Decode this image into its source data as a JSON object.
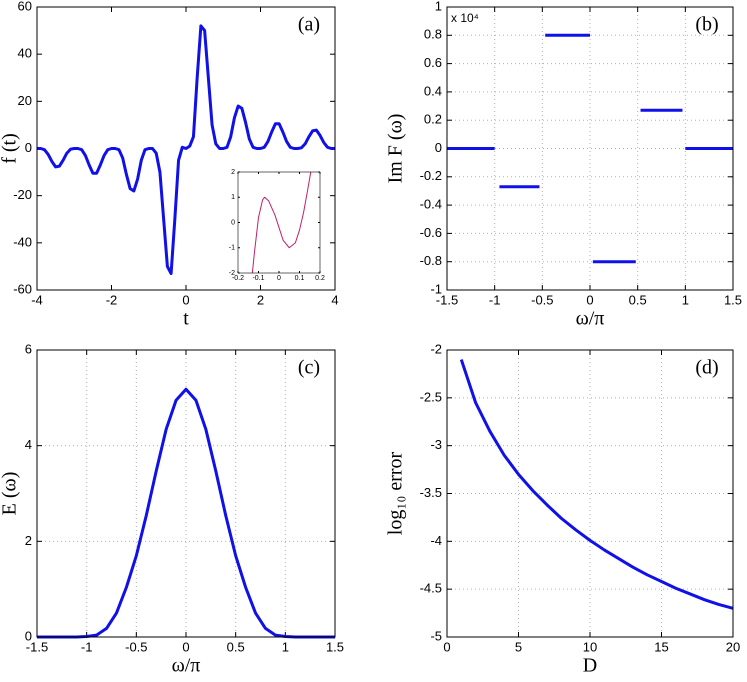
{
  "chart_data": [
    {
      "type": "line",
      "panel_label": "(a)",
      "xlabel": "t",
      "ylabel": "f (t)",
      "color": "#1010e8",
      "grid": false,
      "xlim": [
        -4,
        4
      ],
      "xticks": [
        -4,
        -2,
        0,
        2,
        4
      ],
      "ylim": [
        -60,
        60
      ],
      "yticks": [
        -60,
        -40,
        -20,
        0,
        20,
        40,
        60
      ],
      "x": [
        -4,
        -3.9,
        -3.8,
        -3.7,
        -3.6,
        -3.5,
        -3.4,
        -3.3,
        -3.2,
        -3.1,
        -3,
        -2.9,
        -2.8,
        -2.7,
        -2.6,
        -2.5,
        -2.4,
        -2.3,
        -2.2,
        -2.1,
        -2,
        -1.9,
        -1.8,
        -1.7,
        -1.6,
        -1.5,
        -1.4,
        -1.3,
        -1.2,
        -1.1,
        -1,
        -0.9,
        -0.8,
        -0.7,
        -0.6,
        -0.5,
        -0.4,
        -0.3,
        -0.2,
        -0.1,
        0,
        0.1,
        0.2,
        0.3,
        0.4,
        0.5,
        0.6,
        0.7,
        0.8,
        0.9,
        1,
        1.1,
        1.2,
        1.3,
        1.4,
        1.5,
        1.6,
        1.7,
        1.8,
        1.9,
        2,
        2.1,
        2.2,
        2.3,
        2.4,
        2.5,
        2.6,
        2.7,
        2.8,
        2.9,
        3,
        3.1,
        3.2,
        3.3,
        3.4,
        3.5,
        3.6,
        3.7,
        3.8,
        3.9,
        4
      ],
      "values": [
        0,
        0,
        -0.5,
        -2.5,
        -5.5,
        -7.8,
        -7.5,
        -5,
        -2,
        -0.3,
        0,
        0,
        -0.5,
        -3,
        -7,
        -10.5,
        -10.5,
        -7,
        -3,
        -0.5,
        0,
        0,
        -0.5,
        -4,
        -11,
        -17,
        -18,
        -13,
        -5,
        -0.5,
        0,
        0,
        -2,
        -10,
        -30,
        -50,
        -53,
        -30,
        -5,
        0.5,
        0,
        1,
        5,
        30,
        52,
        50,
        30,
        10,
        2,
        0,
        0,
        0.5,
        5,
        13,
        18,
        17,
        11,
        4,
        0.5,
        0,
        0,
        0.5,
        3,
        7,
        10.5,
        10.5,
        7,
        3,
        0.5,
        0,
        0,
        0.3,
        2,
        5,
        7.5,
        7.8,
        5.5,
        2.5,
        0.5,
        0,
        0
      ]
    },
    {
      "type": "line",
      "panel_label": "(b)",
      "xlabel": "ω/π",
      "ylabel": "Im F (ω)",
      "multiplier": "x 10⁴",
      "color": "#1010e8",
      "grid": true,
      "xlim": [
        -1.5,
        1.5
      ],
      "xticks": [
        -1.5,
        -1,
        -0.5,
        0,
        0.5,
        1,
        1.5
      ],
      "ylim": [
        -1,
        1
      ],
      "yticks": [
        -1,
        -0.8,
        -0.6,
        -0.4,
        -0.2,
        0,
        0.2,
        0.4,
        0.6,
        0.8,
        1
      ],
      "x": [
        -1.5,
        -1.0,
        -0.97,
        -0.95,
        -0.53,
        -0.5,
        -0.47,
        0,
        0.015,
        0.03,
        0.48,
        0.5,
        0.53,
        0.97,
        0.985,
        1.0,
        1.5
      ],
      "values": [
        0,
        0,
        null,
        -0.27,
        -0.27,
        null,
        0.8,
        0.8,
        null,
        -0.8,
        -0.8,
        null,
        0.27,
        0.27,
        null,
        0,
        0
      ]
    },
    {
      "type": "line",
      "panel_label": "(c)",
      "xlabel": "ω/π",
      "ylabel": "E (ω)",
      "color": "#1010e8",
      "grid": true,
      "xlim": [
        -1.5,
        1.5
      ],
      "xticks": [
        -1.5,
        -1,
        -0.5,
        0,
        0.5,
        1,
        1.5
      ],
      "ylim": [
        0,
        6
      ],
      "yticks": [
        0,
        2,
        4,
        6
      ],
      "x": [
        -1.5,
        -1.4,
        -1.3,
        -1.2,
        -1.1,
        -1,
        -0.9,
        -0.8,
        -0.7,
        -0.6,
        -0.5,
        -0.4,
        -0.3,
        -0.2,
        -0.1,
        0,
        0.1,
        0.2,
        0.3,
        0.4,
        0.5,
        0.6,
        0.7,
        0.8,
        0.9,
        1,
        1.1,
        1.2,
        1.3,
        1.4,
        1.5
      ],
      "values": [
        0,
        0,
        0,
        0,
        0,
        0.01,
        0.04,
        0.18,
        0.5,
        1.04,
        1.7,
        2.54,
        3.47,
        4.34,
        4.95,
        5.18,
        4.95,
        4.34,
        3.47,
        2.54,
        1.7,
        1.04,
        0.5,
        0.18,
        0.04,
        0.01,
        0,
        0,
        0,
        0,
        0
      ]
    },
    {
      "type": "line",
      "panel_label": "(d)",
      "xlabel": "D",
      "ylabel": "log₁₀ error",
      "color": "#1010e8",
      "grid": true,
      "xlim": [
        0,
        20
      ],
      "xticks": [
        0,
        5,
        10,
        15,
        20
      ],
      "ylim": [
        -5,
        -2
      ],
      "yticks": [
        -5,
        -4.5,
        -4,
        -3.5,
        -3,
        -2.5,
        -2
      ],
      "x": [
        1,
        2,
        3,
        4,
        5,
        6,
        7,
        8,
        9,
        10,
        11,
        12,
        13,
        14,
        15,
        16,
        17,
        18,
        19,
        20
      ],
      "values": [
        -2.1,
        -2.55,
        -2.85,
        -3.1,
        -3.3,
        -3.47,
        -3.62,
        -3.76,
        -3.88,
        -3.99,
        -4.09,
        -4.18,
        -4.27,
        -4.35,
        -4.42,
        -4.49,
        -4.55,
        -4.61,
        -4.66,
        -4.7
      ]
    },
    {
      "type": "line",
      "color": "#c0206a",
      "grid": false,
      "xlim": [
        -0.2,
        0.2
      ],
      "xticks": [
        -0.2,
        -0.1,
        0,
        0.1,
        0.2
      ],
      "ylim": [
        -2,
        2
      ],
      "yticks": [
        -2,
        -1,
        0,
        1,
        2
      ],
      "x": [
        -0.13,
        -0.12,
        -0.1,
        -0.08,
        -0.07,
        -0.05,
        -0.02,
        0,
        0.02,
        0.05,
        0.08,
        0.1,
        0.12,
        0.14,
        0.155
      ],
      "values": [
        -2,
        -1.2,
        0.2,
        0.9,
        1,
        0.85,
        0.3,
        -0.2,
        -0.7,
        -1,
        -0.8,
        -0.3,
        0.4,
        1.3,
        2
      ]
    }
  ]
}
